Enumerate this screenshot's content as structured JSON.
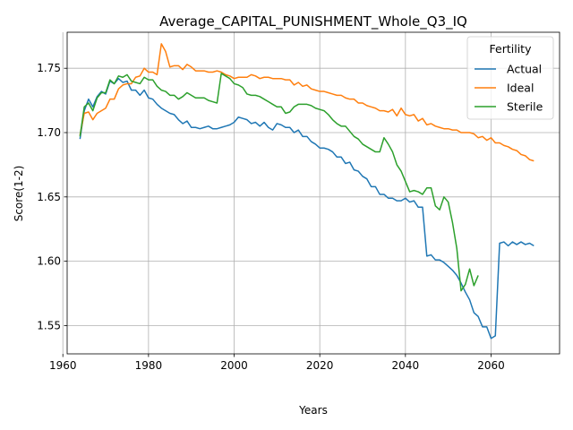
{
  "chart_data": {
    "type": "line",
    "title": "Average_CAPITAL_PUNISHMENT_Whole_Q3_IQ",
    "xlabel": "Years",
    "ylabel": "Score(1-2)",
    "xlim": [
      1961,
      2076
    ],
    "ylim": [
      1.528,
      1.778
    ],
    "xticks": [
      1960,
      1980,
      2000,
      2020,
      2040,
      2060
    ],
    "yticks": [
      1.55,
      1.6,
      1.65,
      1.7,
      1.75
    ],
    "ytick_labels": [
      "1.55",
      "1.60",
      "1.65",
      "1.70",
      "1.75"
    ],
    "grid": true,
    "legend": {
      "title": "Fertility",
      "position": "top-right"
    },
    "series": [
      {
        "name": "Actual",
        "color": "#1f77b4",
        "points": [
          [
            1964,
            1.695
          ],
          [
            1965,
            1.717
          ],
          [
            1966,
            1.726
          ],
          [
            1967,
            1.72
          ],
          [
            1968,
            1.728
          ],
          [
            1969,
            1.732
          ],
          [
            1970,
            1.73
          ],
          [
            1971,
            1.74
          ],
          [
            1972,
            1.738
          ],
          [
            1973,
            1.742
          ],
          [
            1974,
            1.739
          ],
          [
            1975,
            1.74
          ],
          [
            1976,
            1.733
          ],
          [
            1977,
            1.733
          ],
          [
            1978,
            1.729
          ],
          [
            1979,
            1.733
          ],
          [
            1980,
            1.727
          ],
          [
            1981,
            1.726
          ],
          [
            1982,
            1.722
          ],
          [
            1983,
            1.719
          ],
          [
            1984,
            1.717
          ],
          [
            1985,
            1.715
          ],
          [
            1986,
            1.714
          ],
          [
            1987,
            1.71
          ],
          [
            1988,
            1.707
          ],
          [
            1989,
            1.709
          ],
          [
            1990,
            1.704
          ],
          [
            1991,
            1.704
          ],
          [
            1992,
            1.703
          ],
          [
            1993,
            1.704
          ],
          [
            1994,
            1.705
          ],
          [
            1995,
            1.703
          ],
          [
            1996,
            1.703
          ],
          [
            1997,
            1.704
          ],
          [
            1998,
            1.705
          ],
          [
            1999,
            1.706
          ],
          [
            2000,
            1.708
          ],
          [
            2001,
            1.712
          ],
          [
            2002,
            1.711
          ],
          [
            2003,
            1.71
          ],
          [
            2004,
            1.707
          ],
          [
            2005,
            1.708
          ],
          [
            2006,
            1.705
          ],
          [
            2007,
            1.708
          ],
          [
            2008,
            1.704
          ],
          [
            2009,
            1.702
          ],
          [
            2010,
            1.707
          ],
          [
            2011,
            1.706
          ],
          [
            2012,
            1.704
          ],
          [
            2013,
            1.704
          ],
          [
            2014,
            1.7
          ],
          [
            2015,
            1.702
          ],
          [
            2016,
            1.697
          ],
          [
            2017,
            1.697
          ],
          [
            2018,
            1.693
          ],
          [
            2019,
            1.691
          ],
          [
            2020,
            1.688
          ],
          [
            2021,
            1.688
          ],
          [
            2022,
            1.687
          ],
          [
            2023,
            1.685
          ],
          [
            2024,
            1.681
          ],
          [
            2025,
            1.681
          ],
          [
            2026,
            1.676
          ],
          [
            2027,
            1.677
          ],
          [
            2028,
            1.671
          ],
          [
            2029,
            1.67
          ],
          [
            2030,
            1.666
          ],
          [
            2031,
            1.664
          ],
          [
            2032,
            1.658
          ],
          [
            2033,
            1.658
          ],
          [
            2034,
            1.652
          ],
          [
            2035,
            1.652
          ],
          [
            2036,
            1.649
          ],
          [
            2037,
            1.649
          ],
          [
            2038,
            1.647
          ],
          [
            2039,
            1.647
          ],
          [
            2040,
            1.649
          ],
          [
            2041,
            1.646
          ],
          [
            2042,
            1.647
          ],
          [
            2043,
            1.642
          ],
          [
            2044,
            1.642
          ],
          [
            2045,
            1.604
          ],
          [
            2046,
            1.605
          ],
          [
            2047,
            1.601
          ],
          [
            2048,
            1.601
          ],
          [
            2049,
            1.599
          ],
          [
            2050,
            1.596
          ],
          [
            2051,
            1.593
          ],
          [
            2052,
            1.589
          ],
          [
            2053,
            1.583
          ],
          [
            2054,
            1.576
          ],
          [
            2055,
            1.57
          ],
          [
            2056,
            1.56
          ],
          [
            2057,
            1.557
          ],
          [
            2058,
            1.549
          ],
          [
            2059,
            1.549
          ],
          [
            2060,
            1.54
          ],
          [
            2061,
            1.542
          ],
          [
            2062,
            1.614
          ],
          [
            2063,
            1.615
          ],
          [
            2064,
            1.612
          ],
          [
            2065,
            1.615
          ],
          [
            2066,
            1.613
          ],
          [
            2067,
            1.615
          ],
          [
            2068,
            1.613
          ],
          [
            2069,
            1.614
          ],
          [
            2070,
            1.612
          ]
        ]
      },
      {
        "name": "Ideal",
        "color": "#ff7f0e",
        "points": [
          [
            1964,
            1.698
          ],
          [
            1965,
            1.715
          ],
          [
            1966,
            1.716
          ],
          [
            1967,
            1.71
          ],
          [
            1968,
            1.715
          ],
          [
            1969,
            1.717
          ],
          [
            1970,
            1.719
          ],
          [
            1971,
            1.726
          ],
          [
            1972,
            1.726
          ],
          [
            1973,
            1.734
          ],
          [
            1974,
            1.737
          ],
          [
            1975,
            1.738
          ],
          [
            1976,
            1.738
          ],
          [
            1977,
            1.743
          ],
          [
            1978,
            1.744
          ],
          [
            1979,
            1.75
          ],
          [
            1980,
            1.747
          ],
          [
            1981,
            1.747
          ],
          [
            1982,
            1.745
          ],
          [
            1983,
            1.769
          ],
          [
            1984,
            1.763
          ],
          [
            1985,
            1.751
          ],
          [
            1986,
            1.752
          ],
          [
            1987,
            1.752
          ],
          [
            1988,
            1.749
          ],
          [
            1989,
            1.753
          ],
          [
            1990,
            1.751
          ],
          [
            1991,
            1.748
          ],
          [
            1992,
            1.748
          ],
          [
            1993,
            1.748
          ],
          [
            1994,
            1.747
          ],
          [
            1995,
            1.747
          ],
          [
            1996,
            1.748
          ],
          [
            1997,
            1.747
          ],
          [
            1998,
            1.745
          ],
          [
            1999,
            1.744
          ],
          [
            2000,
            1.742
          ],
          [
            2001,
            1.743
          ],
          [
            2002,
            1.743
          ],
          [
            2003,
            1.743
          ],
          [
            2004,
            1.745
          ],
          [
            2005,
            1.744
          ],
          [
            2006,
            1.742
          ],
          [
            2007,
            1.743
          ],
          [
            2008,
            1.743
          ],
          [
            2009,
            1.742
          ],
          [
            2010,
            1.742
          ],
          [
            2011,
            1.742
          ],
          [
            2012,
            1.741
          ],
          [
            2013,
            1.741
          ],
          [
            2014,
            1.737
          ],
          [
            2015,
            1.739
          ],
          [
            2016,
            1.736
          ],
          [
            2017,
            1.737
          ],
          [
            2018,
            1.734
          ],
          [
            2019,
            1.733
          ],
          [
            2020,
            1.732
          ],
          [
            2021,
            1.732
          ],
          [
            2022,
            1.731
          ],
          [
            2023,
            1.73
          ],
          [
            2024,
            1.729
          ],
          [
            2025,
            1.729
          ],
          [
            2026,
            1.727
          ],
          [
            2027,
            1.726
          ],
          [
            2028,
            1.726
          ],
          [
            2029,
            1.723
          ],
          [
            2030,
            1.723
          ],
          [
            2031,
            1.721
          ],
          [
            2032,
            1.72
          ],
          [
            2033,
            1.719
          ],
          [
            2034,
            1.717
          ],
          [
            2035,
            1.717
          ],
          [
            2036,
            1.716
          ],
          [
            2037,
            1.718
          ],
          [
            2038,
            1.713
          ],
          [
            2039,
            1.719
          ],
          [
            2040,
            1.714
          ],
          [
            2041,
            1.713
          ],
          [
            2042,
            1.714
          ],
          [
            2043,
            1.709
          ],
          [
            2044,
            1.711
          ],
          [
            2045,
            1.706
          ],
          [
            2046,
            1.707
          ],
          [
            2047,
            1.705
          ],
          [
            2048,
            1.704
          ],
          [
            2049,
            1.703
          ],
          [
            2050,
            1.703
          ],
          [
            2051,
            1.702
          ],
          [
            2052,
            1.702
          ],
          [
            2053,
            1.7
          ],
          [
            2054,
            1.7
          ],
          [
            2055,
            1.7
          ],
          [
            2056,
            1.699
          ],
          [
            2057,
            1.696
          ],
          [
            2058,
            1.697
          ],
          [
            2059,
            1.694
          ],
          [
            2060,
            1.696
          ],
          [
            2061,
            1.692
          ],
          [
            2062,
            1.692
          ],
          [
            2063,
            1.69
          ],
          [
            2064,
            1.689
          ],
          [
            2065,
            1.687
          ],
          [
            2066,
            1.686
          ],
          [
            2067,
            1.683
          ],
          [
            2068,
            1.682
          ],
          [
            2069,
            1.679
          ],
          [
            2070,
            1.678
          ]
        ]
      },
      {
        "name": "Sterile",
        "color": "#2ca02c",
        "points": [
          [
            1964,
            1.697
          ],
          [
            1965,
            1.72
          ],
          [
            1966,
            1.723
          ],
          [
            1967,
            1.717
          ],
          [
            1968,
            1.727
          ],
          [
            1969,
            1.731
          ],
          [
            1970,
            1.731
          ],
          [
            1971,
            1.741
          ],
          [
            1972,
            1.738
          ],
          [
            1973,
            1.744
          ],
          [
            1974,
            1.743
          ],
          [
            1975,
            1.745
          ],
          [
            1976,
            1.74
          ],
          [
            1977,
            1.739
          ],
          [
            1978,
            1.738
          ],
          [
            1979,
            1.743
          ],
          [
            1980,
            1.741
          ],
          [
            1981,
            1.741
          ],
          [
            1982,
            1.736
          ],
          [
            1983,
            1.733
          ],
          [
            1984,
            1.732
          ],
          [
            1985,
            1.729
          ],
          [
            1986,
            1.729
          ],
          [
            1987,
            1.726
          ],
          [
            1988,
            1.728
          ],
          [
            1989,
            1.731
          ],
          [
            1990,
            1.729
          ],
          [
            1991,
            1.727
          ],
          [
            1992,
            1.727
          ],
          [
            1993,
            1.727
          ],
          [
            1994,
            1.725
          ],
          [
            1995,
            1.724
          ],
          [
            1996,
            1.723
          ],
          [
            1997,
            1.746
          ],
          [
            1998,
            1.744
          ],
          [
            1999,
            1.742
          ],
          [
            2000,
            1.738
          ],
          [
            2001,
            1.737
          ],
          [
            2002,
            1.735
          ],
          [
            2003,
            1.73
          ],
          [
            2004,
            1.729
          ],
          [
            2005,
            1.729
          ],
          [
            2006,
            1.728
          ],
          [
            2007,
            1.726
          ],
          [
            2008,
            1.724
          ],
          [
            2009,
            1.722
          ],
          [
            2010,
            1.72
          ],
          [
            2011,
            1.72
          ],
          [
            2012,
            1.715
          ],
          [
            2013,
            1.716
          ],
          [
            2014,
            1.72
          ],
          [
            2015,
            1.722
          ],
          [
            2016,
            1.722
          ],
          [
            2017,
            1.722
          ],
          [
            2018,
            1.721
          ],
          [
            2019,
            1.719
          ],
          [
            2020,
            1.718
          ],
          [
            2021,
            1.717
          ],
          [
            2022,
            1.714
          ],
          [
            2023,
            1.71
          ],
          [
            2024,
            1.707
          ],
          [
            2025,
            1.705
          ],
          [
            2026,
            1.705
          ],
          [
            2027,
            1.701
          ],
          [
            2028,
            1.697
          ],
          [
            2029,
            1.695
          ],
          [
            2030,
            1.691
          ],
          [
            2031,
            1.689
          ],
          [
            2032,
            1.687
          ],
          [
            2033,
            1.685
          ],
          [
            2034,
            1.685
          ],
          [
            2035,
            1.696
          ],
          [
            2036,
            1.691
          ],
          [
            2037,
            1.685
          ],
          [
            2038,
            1.675
          ],
          [
            2039,
            1.67
          ],
          [
            2040,
            1.662
          ],
          [
            2041,
            1.654
          ],
          [
            2042,
            1.655
          ],
          [
            2043,
            1.654
          ],
          [
            2044,
            1.652
          ],
          [
            2045,
            1.657
          ],
          [
            2046,
            1.657
          ],
          [
            2047,
            1.643
          ],
          [
            2048,
            1.64
          ],
          [
            2049,
            1.65
          ],
          [
            2050,
            1.646
          ],
          [
            2051,
            1.63
          ],
          [
            2052,
            1.61
          ],
          [
            2053,
            1.577
          ],
          [
            2054,
            1.582
          ],
          [
            2055,
            1.594
          ],
          [
            2056,
            1.581
          ],
          [
            2057,
            1.589
          ]
        ]
      }
    ]
  }
}
